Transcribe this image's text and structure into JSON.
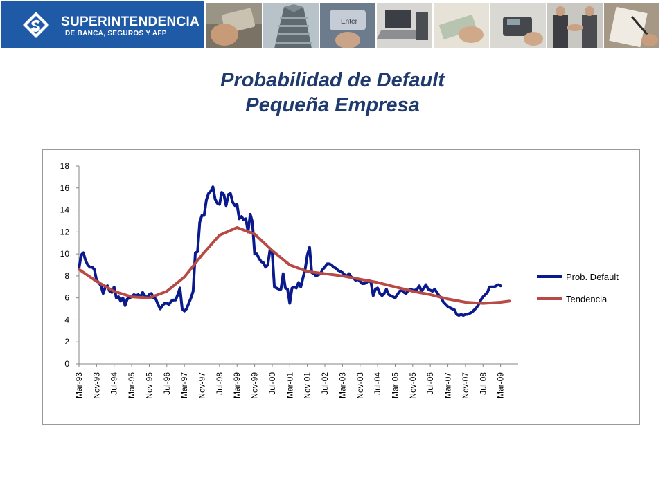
{
  "header": {
    "logo_line1": "SUPERINTENDENCIA",
    "logo_line2": "DE BANCA, SEGUROS Y AFP",
    "brand_color": "#1f5aa6",
    "photos": [
      "credit-card-photo",
      "building-photo",
      "enter-key-photo",
      "laptop-photo",
      "money-hands-photo",
      "card-terminal-photo",
      "handshake-photo",
      "signing-document-photo"
    ]
  },
  "title": {
    "line1": "Probabilidad de Default",
    "line2": "Pequeña Empresa",
    "color": "#1f3a6e"
  },
  "chart_data": {
    "type": "line",
    "title": "",
    "xlabel": "",
    "ylabel": "",
    "ylim": [
      0,
      18
    ],
    "yticks": [
      "0",
      "2",
      "4",
      "6",
      "8",
      "10",
      "12",
      "14",
      "16",
      "18"
    ],
    "x_tick_labels": [
      "Mar-93",
      "Nov-93",
      "Jul-94",
      "Mar-95",
      "Nov-95",
      "Jul-96",
      "Mar-97",
      "Nov-97",
      "Jul-98",
      "Mar-99",
      "Nov-99",
      "Jul-00",
      "Mar-01",
      "Nov-01",
      "Jul-02",
      "Mar-03",
      "Nov-03",
      "Jul-04",
      "Mar-05",
      "Nov-05",
      "Jul-06",
      "Mar-07",
      "Nov-07",
      "Jul-08",
      "Mar-09"
    ],
    "x_range": [
      "Mar-93",
      "Nov-09"
    ],
    "legend_position": "right",
    "series": [
      {
        "name": "Prob. Default",
        "color": "#0a1a8c",
        "points": [
          [
            "Mar-93",
            8.7
          ],
          [
            "Apr-93",
            9.9
          ],
          [
            "May-93",
            10.1
          ],
          [
            "Jun-93",
            9.4
          ],
          [
            "Jul-93",
            9.0
          ],
          [
            "Aug-93",
            8.8
          ],
          [
            "Sep-93",
            8.8
          ],
          [
            "Oct-93",
            8.6
          ],
          [
            "Nov-93",
            7.6
          ],
          [
            "Dec-93",
            7.4
          ],
          [
            "Jan-94",
            7.1
          ],
          [
            "Feb-94",
            6.4
          ],
          [
            "Mar-94",
            7.0
          ],
          [
            "Apr-94",
            7.1
          ],
          [
            "May-94",
            6.6
          ],
          [
            "Jun-94",
            6.5
          ],
          [
            "Jul-94",
            7.0
          ],
          [
            "Aug-94",
            6.0
          ],
          [
            "Sep-94",
            6.1
          ],
          [
            "Oct-94",
            5.7
          ],
          [
            "Nov-94",
            6.0
          ],
          [
            "Dec-94",
            5.3
          ],
          [
            "Jan-95",
            5.9
          ],
          [
            "Feb-95",
            6.0
          ],
          [
            "Mar-95",
            6.1
          ],
          [
            "Apr-95",
            6.3
          ],
          [
            "May-95",
            6.2
          ],
          [
            "Jun-95",
            6.3
          ],
          [
            "Jul-95",
            6.1
          ],
          [
            "Aug-95",
            6.5
          ],
          [
            "Sep-95",
            6.2
          ],
          [
            "Oct-95",
            6.0
          ],
          [
            "Nov-95",
            6.3
          ],
          [
            "Dec-95",
            6.4
          ],
          [
            "Jan-96",
            6.0
          ],
          [
            "Feb-96",
            5.9
          ],
          [
            "Mar-96",
            5.4
          ],
          [
            "Apr-96",
            5.0
          ],
          [
            "May-96",
            5.3
          ],
          [
            "Jun-96",
            5.5
          ],
          [
            "Jul-96",
            5.5
          ],
          [
            "Aug-96",
            5.4
          ],
          [
            "Sep-96",
            5.7
          ],
          [
            "Oct-96",
            5.8
          ],
          [
            "Nov-96",
            5.8
          ],
          [
            "Dec-96",
            6.3
          ],
          [
            "Jan-97",
            6.9
          ],
          [
            "Feb-97",
            5.0
          ],
          [
            "Mar-97",
            4.8
          ],
          [
            "Apr-97",
            5.0
          ],
          [
            "May-97",
            5.5
          ],
          [
            "Jun-97",
            6.0
          ],
          [
            "Jul-97",
            6.6
          ],
          [
            "Aug-97",
            10.1
          ],
          [
            "Sep-97",
            10.2
          ],
          [
            "Oct-97",
            12.9
          ],
          [
            "Nov-97",
            13.5
          ],
          [
            "Dec-97",
            13.5
          ],
          [
            "Jan-98",
            14.9
          ],
          [
            "Feb-98",
            15.5
          ],
          [
            "Mar-98",
            15.7
          ],
          [
            "Apr-98",
            16.1
          ],
          [
            "May-98",
            15.0
          ],
          [
            "Jun-98",
            14.6
          ],
          [
            "Jul-98",
            14.5
          ],
          [
            "Aug-98",
            15.6
          ],
          [
            "Sep-98",
            15.4
          ],
          [
            "Oct-98",
            14.4
          ],
          [
            "Nov-98",
            15.4
          ],
          [
            "Dec-98",
            15.5
          ],
          [
            "Jan-99",
            14.7
          ],
          [
            "Feb-99",
            14.4
          ],
          [
            "Mar-99",
            14.5
          ],
          [
            "Apr-99",
            13.2
          ],
          [
            "May-99",
            13.4
          ],
          [
            "Jun-99",
            13.1
          ],
          [
            "Jul-99",
            13.2
          ],
          [
            "Aug-99",
            12.0
          ],
          [
            "Sep-99",
            13.6
          ],
          [
            "Oct-99",
            12.9
          ],
          [
            "Nov-99",
            10.0
          ],
          [
            "Dec-99",
            10.0
          ],
          [
            "Jan-00",
            9.6
          ],
          [
            "Feb-00",
            9.3
          ],
          [
            "Mar-00",
            9.2
          ],
          [
            "Apr-00",
            8.8
          ],
          [
            "May-00",
            9.0
          ],
          [
            "Jun-00",
            10.4
          ],
          [
            "Jul-00",
            10.1
          ],
          [
            "Aug-00",
            7.0
          ],
          [
            "Sep-00",
            6.9
          ],
          [
            "Oct-00",
            6.8
          ],
          [
            "Nov-00",
            6.8
          ],
          [
            "Dec-00",
            8.2
          ],
          [
            "Jan-01",
            6.9
          ],
          [
            "Feb-01",
            6.8
          ],
          [
            "Mar-01",
            5.5
          ],
          [
            "Apr-01",
            6.9
          ],
          [
            "May-01",
            7.0
          ],
          [
            "Jun-01",
            6.9
          ],
          [
            "Jul-01",
            7.4
          ],
          [
            "Aug-01",
            7.0
          ],
          [
            "Sep-01",
            7.8
          ],
          [
            "Oct-01",
            8.6
          ],
          [
            "Nov-01",
            9.9
          ],
          [
            "Dec-01",
            10.6
          ],
          [
            "Jan-02",
            8.3
          ],
          [
            "Feb-02",
            8.2
          ],
          [
            "Mar-02",
            8.0
          ],
          [
            "Apr-02",
            8.1
          ],
          [
            "May-02",
            8.2
          ],
          [
            "Jun-02",
            8.6
          ],
          [
            "Jul-02",
            8.8
          ],
          [
            "Aug-02",
            9.1
          ],
          [
            "Sep-02",
            9.1
          ],
          [
            "Oct-02",
            9.0
          ],
          [
            "Nov-02",
            8.8
          ],
          [
            "Dec-02",
            8.7
          ],
          [
            "Jan-03",
            8.5
          ],
          [
            "Feb-03",
            8.4
          ],
          [
            "Mar-03",
            8.3
          ],
          [
            "Apr-03",
            8.1
          ],
          [
            "May-03",
            8.0
          ],
          [
            "Jun-03",
            8.2
          ],
          [
            "Jul-03",
            7.9
          ],
          [
            "Aug-03",
            7.8
          ],
          [
            "Sep-03",
            7.6
          ],
          [
            "Oct-03",
            7.7
          ],
          [
            "Nov-03",
            7.5
          ],
          [
            "Dec-03",
            7.3
          ],
          [
            "Jan-04",
            7.3
          ],
          [
            "Feb-04",
            7.4
          ],
          [
            "Mar-04",
            7.6
          ],
          [
            "Apr-04",
            7.4
          ],
          [
            "May-04",
            6.2
          ],
          [
            "Jun-04",
            6.8
          ],
          [
            "Jul-04",
            6.9
          ],
          [
            "Aug-04",
            6.4
          ],
          [
            "Sep-04",
            6.2
          ],
          [
            "Oct-04",
            6.4
          ],
          [
            "Nov-04",
            6.8
          ],
          [
            "Dec-04",
            6.3
          ],
          [
            "Jan-05",
            6.2
          ],
          [
            "Feb-05",
            6.1
          ],
          [
            "Mar-05",
            6.0
          ],
          [
            "Apr-05",
            6.3
          ],
          [
            "May-05",
            6.6
          ],
          [
            "Jun-05",
            6.7
          ],
          [
            "Jul-05",
            6.5
          ],
          [
            "Aug-05",
            6.4
          ],
          [
            "Sep-05",
            6.7
          ],
          [
            "Oct-05",
            6.8
          ],
          [
            "Nov-05",
            6.7
          ],
          [
            "Dec-05",
            6.7
          ],
          [
            "Jan-06",
            6.8
          ],
          [
            "Feb-06",
            7.1
          ],
          [
            "Mar-06",
            6.6
          ],
          [
            "Apr-06",
            6.9
          ],
          [
            "May-06",
            7.2
          ],
          [
            "Jun-06",
            6.8
          ],
          [
            "Jul-06",
            6.7
          ],
          [
            "Aug-06",
            6.6
          ],
          [
            "Sep-06",
            6.8
          ],
          [
            "Oct-06",
            6.5
          ],
          [
            "Nov-06",
            6.2
          ],
          [
            "Dec-06",
            6.0
          ],
          [
            "Jan-07",
            5.6
          ],
          [
            "Feb-07",
            5.4
          ],
          [
            "Mar-07",
            5.2
          ],
          [
            "Apr-07",
            5.1
          ],
          [
            "May-07",
            5.0
          ],
          [
            "Jun-07",
            4.9
          ],
          [
            "Jul-07",
            4.5
          ],
          [
            "Aug-07",
            4.4
          ],
          [
            "Sep-07",
            4.5
          ],
          [
            "Oct-07",
            4.4
          ],
          [
            "Nov-07",
            4.5
          ],
          [
            "Dec-07",
            4.5
          ],
          [
            "Jan-08",
            4.6
          ],
          [
            "Feb-08",
            4.7
          ],
          [
            "Mar-08",
            4.9
          ],
          [
            "Apr-08",
            5.1
          ],
          [
            "May-08",
            5.4
          ],
          [
            "Jun-08",
            5.8
          ],
          [
            "Jul-08",
            6.1
          ],
          [
            "Aug-08",
            6.3
          ],
          [
            "Sep-08",
            6.5
          ],
          [
            "Oct-08",
            7.0
          ],
          [
            "Nov-08",
            7.0
          ],
          [
            "Dec-08",
            7.0
          ],
          [
            "Jan-09",
            7.1
          ],
          [
            "Feb-09",
            7.2
          ],
          [
            "Mar-09",
            7.1
          ]
        ]
      },
      {
        "name": "Tendencia",
        "color": "#b84a45",
        "points": [
          [
            "Mar-93",
            8.6
          ],
          [
            "Nov-93",
            7.5
          ],
          [
            "Jul-94",
            6.6
          ],
          [
            "Mar-95",
            6.1
          ],
          [
            "Nov-95",
            6.0
          ],
          [
            "Jul-96",
            6.6
          ],
          [
            "Mar-97",
            7.9
          ],
          [
            "Nov-97",
            9.9
          ],
          [
            "Jul-98",
            11.7
          ],
          [
            "Mar-99",
            12.4
          ],
          [
            "Nov-99",
            11.8
          ],
          [
            "Jul-00",
            10.3
          ],
          [
            "Mar-01",
            9.0
          ],
          [
            "Nov-01",
            8.4
          ],
          [
            "Jul-02",
            8.2
          ],
          [
            "Mar-03",
            8.0
          ],
          [
            "Nov-03",
            7.7
          ],
          [
            "Jul-04",
            7.4
          ],
          [
            "Mar-05",
            7.0
          ],
          [
            "Nov-05",
            6.6
          ],
          [
            "Jul-06",
            6.3
          ],
          [
            "Mar-07",
            5.9
          ],
          [
            "Nov-07",
            5.6
          ],
          [
            "Jul-08",
            5.5
          ],
          [
            "Mar-09",
            5.6
          ],
          [
            "Jul-09",
            5.7
          ]
        ]
      }
    ]
  }
}
